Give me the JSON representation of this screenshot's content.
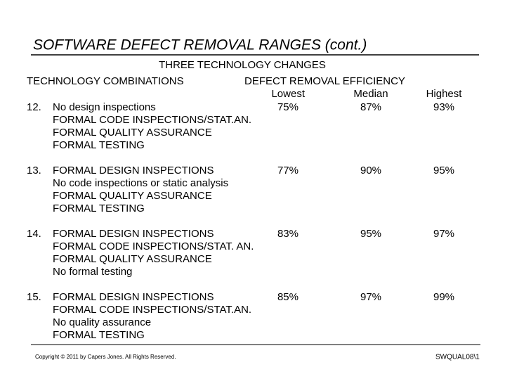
{
  "title": "SOFTWARE DEFECT REMOVAL RANGES (cont.)",
  "subtitle": "THREE TECHNOLOGY CHANGES",
  "header": {
    "combinations": "TECHNOLOGY COMBINATIONS",
    "efficiency": "DEFECT REMOVAL EFFICIENCY",
    "columns": [
      "Lowest",
      "Median",
      "Highest"
    ]
  },
  "rows": [
    {
      "number": "12.",
      "lines": [
        "No design inspections",
        "FORMAL CODE INSPECTIONS/STAT.AN.",
        "FORMAL QUALITY ASSURANCE",
        "FORMAL TESTING"
      ],
      "values": [
        "75%",
        "87%",
        "93%"
      ]
    },
    {
      "number": "13.",
      "lines": [
        "FORMAL DESIGN INSPECTIONS",
        "No code inspections or static analysis",
        "FORMAL QUALITY ASSURANCE",
        "FORMAL TESTING"
      ],
      "values": [
        "77%",
        "90%",
        "95%"
      ]
    },
    {
      "number": "14.",
      "lines": [
        "FORMAL DESIGN INSPECTIONS",
        "FORMAL CODE INSPECTIONS/STAT. AN.",
        "FORMAL QUALITY ASSURANCE",
        "No formal testing"
      ],
      "values": [
        "83%",
        "95%",
        "97%"
      ]
    },
    {
      "number": "15.",
      "lines": [
        "FORMAL DESIGN INSPECTIONS",
        "FORMAL CODE INSPECTIONS/STAT.AN.",
        "No quality assurance",
        "FORMAL TESTING"
      ],
      "values": [
        "85%",
        "97%",
        "99%"
      ]
    }
  ],
  "footer": {
    "copyright": "Copyright © 2011 by Capers Jones. All Rights Reserved.",
    "slide_id": "SWQUAL08\\1"
  }
}
